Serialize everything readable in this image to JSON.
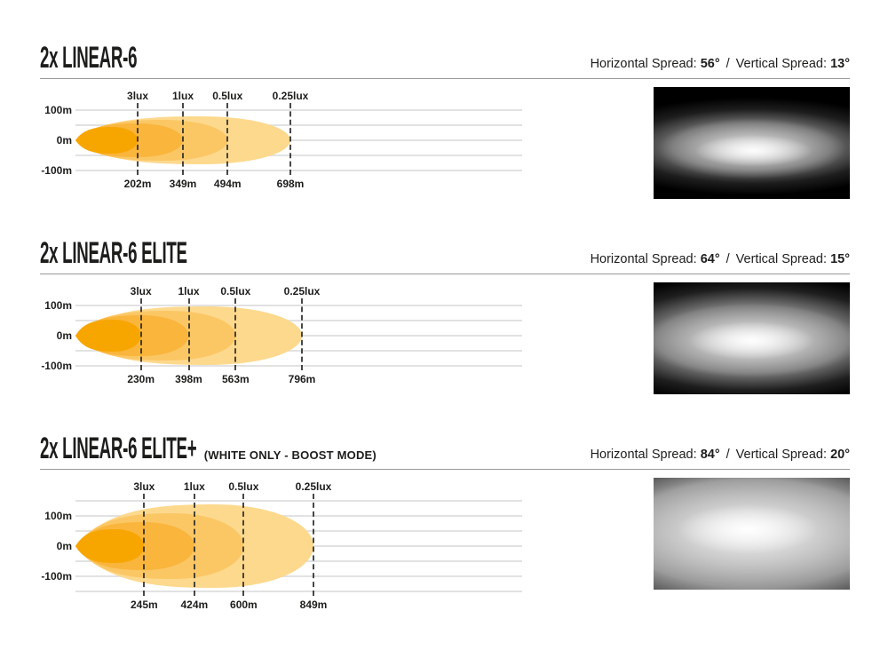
{
  "page": {
    "background": "#ffffff",
    "text_color": "#1d1d1b"
  },
  "sections": [
    {
      "title": "2x LINEAR-6",
      "subtitle": "",
      "spread": {
        "horizontal_label": "Horizontal Spread:",
        "horizontal_value": "56°",
        "separator": "/",
        "vertical_label": "Vertical Spread:",
        "vertical_value": "13°"
      }
    },
    {
      "title": "2x LINEAR-6 ELITE",
      "subtitle": "",
      "spread": {
        "horizontal_label": "Horizontal Spread:",
        "horizontal_value": "64°",
        "separator": "/",
        "vertical_label": "Vertical Spread:",
        "vertical_value": "15°"
      }
    },
    {
      "title": "2x LINEAR-6 ELITE+",
      "subtitle": "(WHITE ONLY - BOOST MODE)",
      "spread": {
        "horizontal_label": "Horizontal Spread:",
        "horizontal_value": "84°",
        "separator": "/",
        "vertical_label": "Vertical Spread:",
        "vertical_value": "20°"
      }
    }
  ],
  "chart_data": [
    {
      "type": "area",
      "x_unit": "m",
      "y_tick_labels": [
        "100m",
        "0m",
        "-100m"
      ],
      "y_gridlines_m": [
        100,
        50,
        0,
        -50,
        -100
      ],
      "contours": [
        {
          "label": "3lux",
          "distance_label": "202m",
          "distance_m": 202,
          "color": "#f7a600"
        },
        {
          "label": "1lux",
          "distance_label": "349m",
          "distance_m": 349,
          "color": "#f9b53c"
        },
        {
          "label": "0.5lux",
          "distance_label": "494m",
          "distance_m": 494,
          "color": "#fbc765"
        },
        {
          "label": "0.25lux",
          "distance_label": "698m",
          "distance_m": 698,
          "color": "#fdd98e"
        }
      ]
    },
    {
      "type": "area",
      "x_unit": "m",
      "y_tick_labels": [
        "100m",
        "0m",
        "-100m"
      ],
      "y_gridlines_m": [
        100,
        50,
        0,
        -50,
        -100
      ],
      "contours": [
        {
          "label": "3lux",
          "distance_label": "230m",
          "distance_m": 230,
          "color": "#f7a600"
        },
        {
          "label": "1lux",
          "distance_label": "398m",
          "distance_m": 398,
          "color": "#f9b53c"
        },
        {
          "label": "0.5lux",
          "distance_label": "563m",
          "distance_m": 563,
          "color": "#fbc765"
        },
        {
          "label": "0.25lux",
          "distance_label": "796m",
          "distance_m": 796,
          "color": "#fdd98e"
        }
      ]
    },
    {
      "type": "area",
      "x_unit": "m",
      "y_tick_labels": [
        "100m",
        "0m",
        "-100m"
      ],
      "y_gridlines_m": [
        150,
        100,
        50,
        0,
        -50,
        -100,
        -150
      ],
      "contours": [
        {
          "label": "3lux",
          "distance_label": "245m",
          "distance_m": 245,
          "color": "#f7a600"
        },
        {
          "label": "1lux",
          "distance_label": "424m",
          "distance_m": 424,
          "color": "#f9b53c"
        },
        {
          "label": "0.5lux",
          "distance_label": "600m",
          "distance_m": 600,
          "color": "#fbc765"
        },
        {
          "label": "0.25lux",
          "distance_label": "849m",
          "distance_m": 849,
          "color": "#fdd98e"
        }
      ]
    }
  ]
}
